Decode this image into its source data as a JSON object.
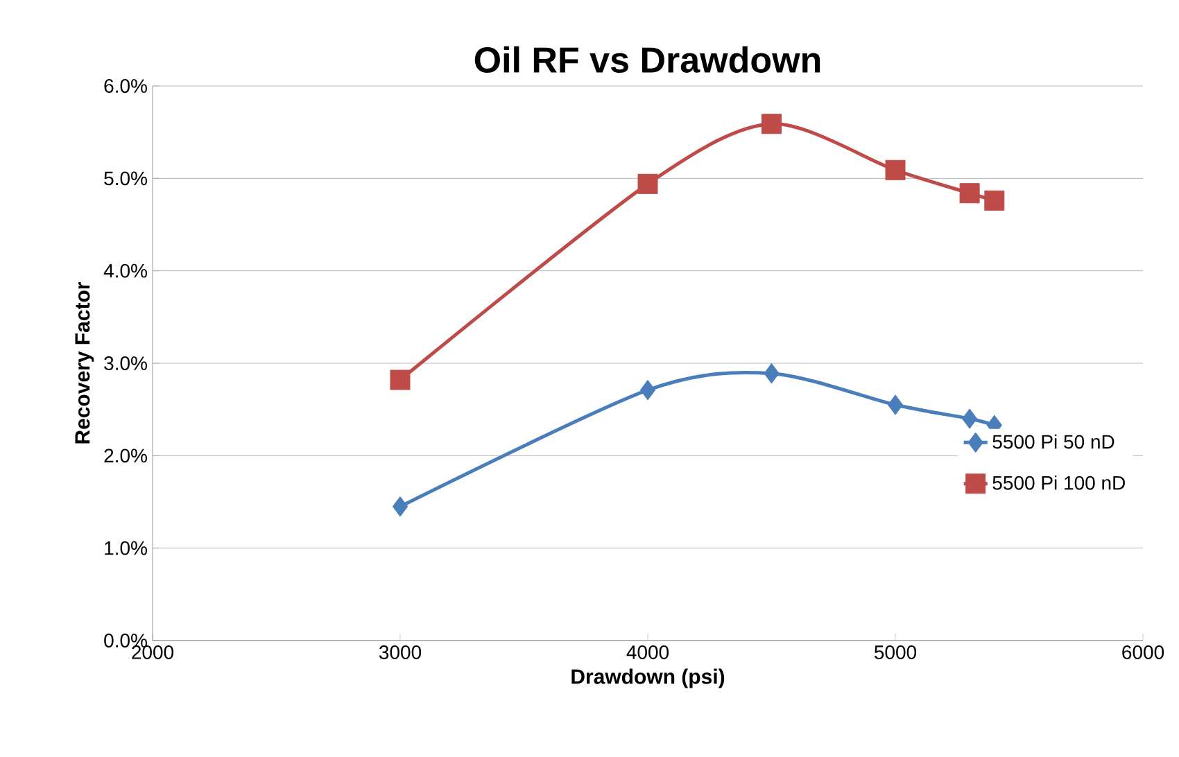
{
  "chart_data": {
    "type": "line",
    "title": "Oil RF vs Drawdown",
    "xlabel": "Drawdown (psi)",
    "ylabel": "Recovery Factor",
    "xlim": [
      2000,
      6000
    ],
    "xticks": [
      2000,
      3000,
      4000,
      5000,
      6000
    ],
    "ylim": [
      0,
      6
    ],
    "yticks": [
      {
        "value": 0,
        "label": "0.0%"
      },
      {
        "value": 1,
        "label": "1.0%"
      },
      {
        "value": 2,
        "label": "2.0%"
      },
      {
        "value": 3,
        "label": "3.0%"
      },
      {
        "value": 4,
        "label": "4.0%"
      },
      {
        "value": 5,
        "label": "5.0%"
      },
      {
        "value": 6,
        "label": "6.0%"
      }
    ],
    "grid": "y",
    "legend": "right",
    "series": [
      {
        "name": "5500 Pi 50 nD",
        "color": "#4a7ebb",
        "marker": "diamond",
        "x": [
          3000,
          4000,
          4500,
          5000,
          5300,
          5400
        ],
        "values": [
          1.45,
          2.71,
          2.89,
          2.55,
          2.4,
          2.33
        ]
      },
      {
        "name": "5500 Pi 100 nD",
        "color": "#be4b48",
        "marker": "square",
        "x": [
          3000,
          4000,
          4500,
          5000,
          5300,
          5400
        ],
        "values": [
          2.82,
          4.94,
          5.59,
          5.09,
          4.84,
          4.76
        ]
      }
    ]
  }
}
